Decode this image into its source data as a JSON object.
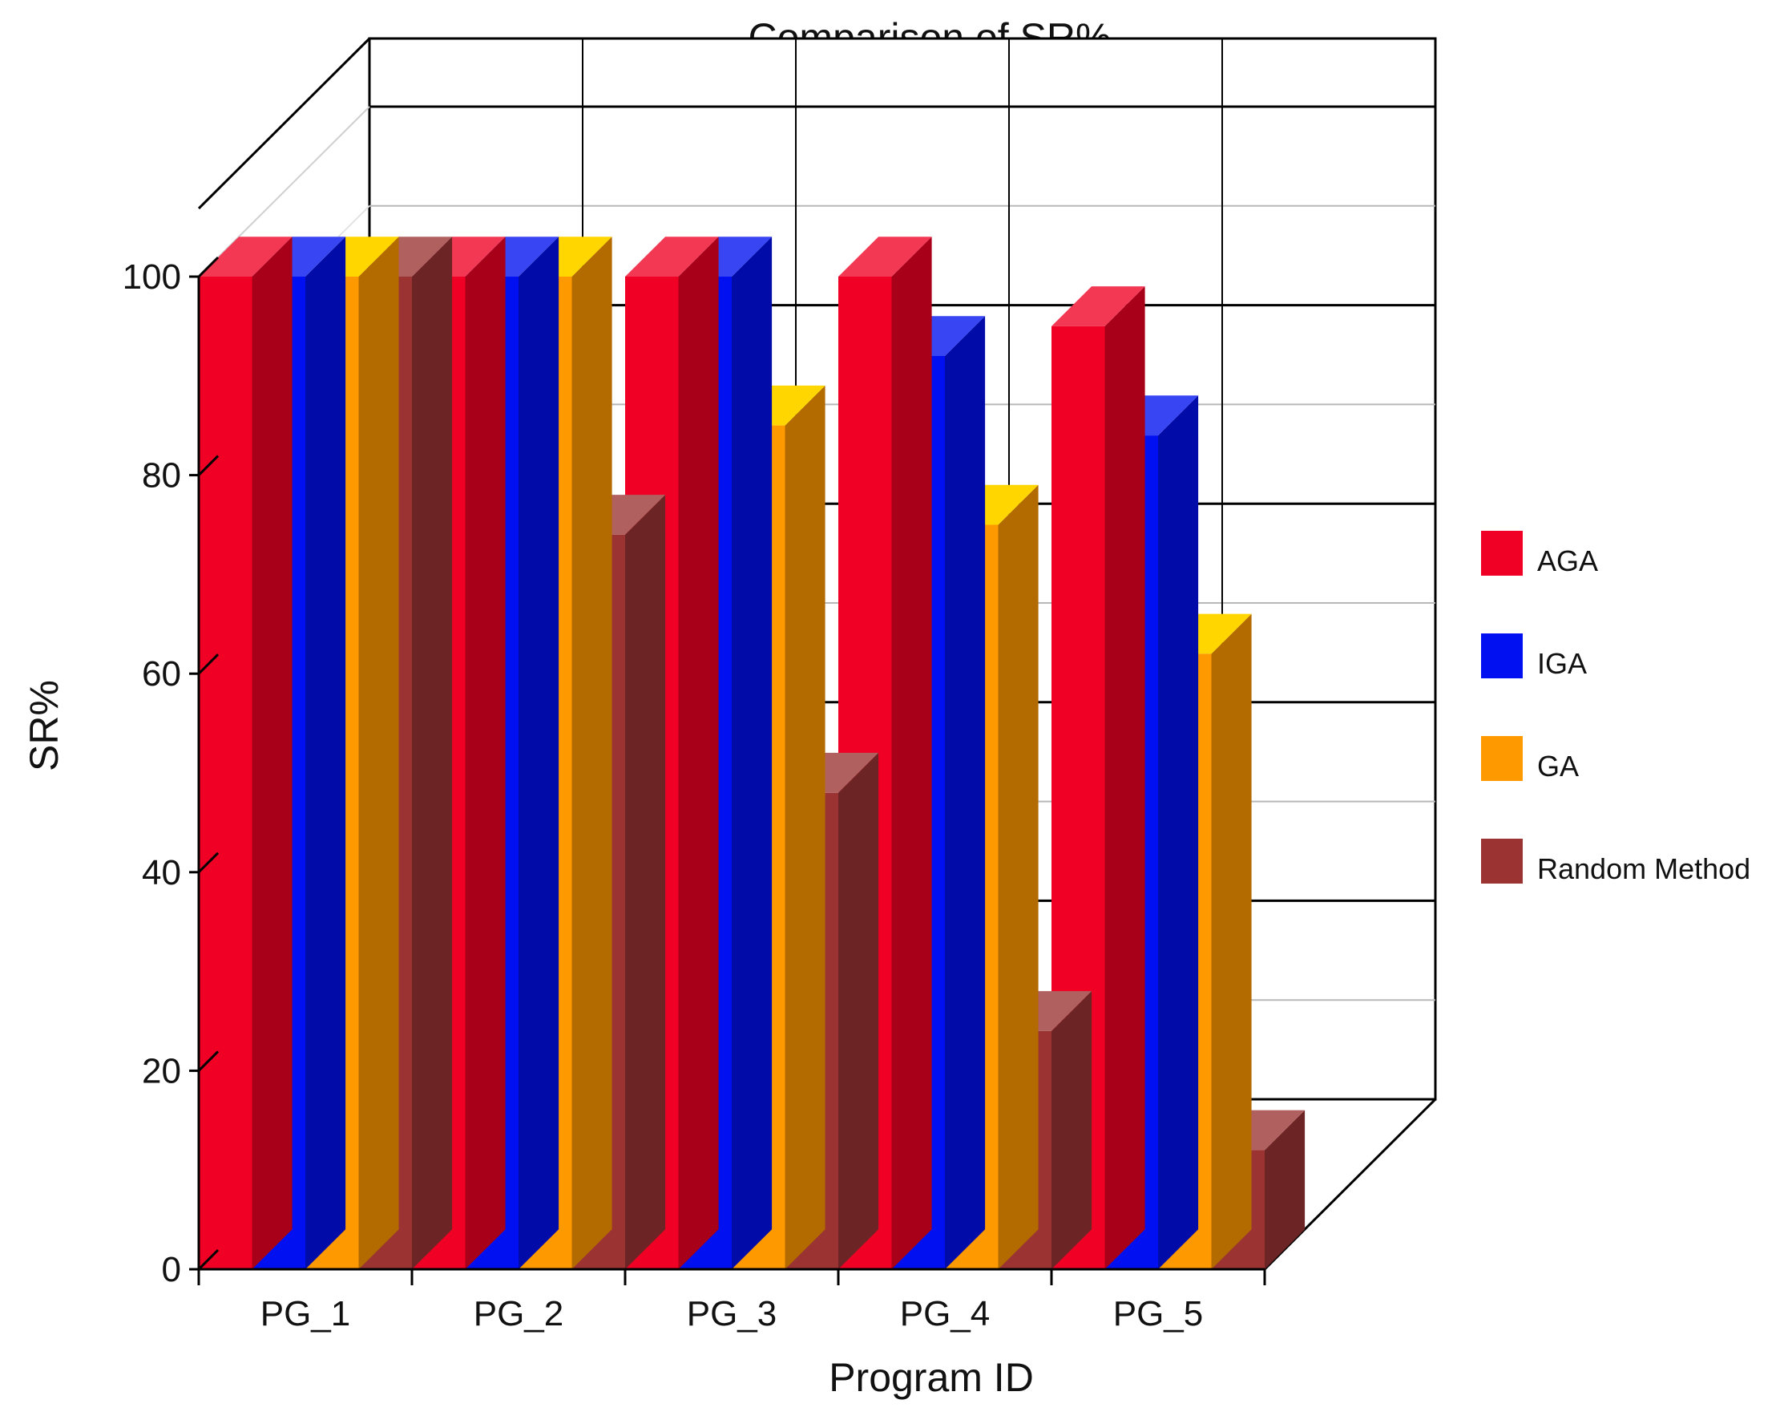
{
  "chart_data": {
    "type": "bar",
    "title": "Comparison of SR%",
    "xlabel": "Program ID",
    "ylabel": "SR%",
    "ylim": [
      0,
      100
    ],
    "yticks": [
      0,
      20,
      40,
      60,
      80,
      100
    ],
    "categories": [
      "PG_1",
      "PG_2",
      "PG_3",
      "PG_4",
      "PG_5"
    ],
    "series": [
      {
        "name": "AGA",
        "values": [
          100,
          100,
          100,
          100,
          95
        ],
        "color": "#F00024"
      },
      {
        "name": "IGA",
        "values": [
          100,
          100,
          100,
          92,
          84
        ],
        "color": "#0010F0"
      },
      {
        "name": "GA",
        "values": [
          100,
          100,
          85,
          75,
          62
        ],
        "color": "#FF9900"
      },
      {
        "name": "Random Method",
        "values": [
          100,
          74,
          48,
          24,
          12
        ],
        "color": "#9B3333"
      }
    ],
    "legend": "right",
    "grid": true,
    "depth_3d": true
  }
}
